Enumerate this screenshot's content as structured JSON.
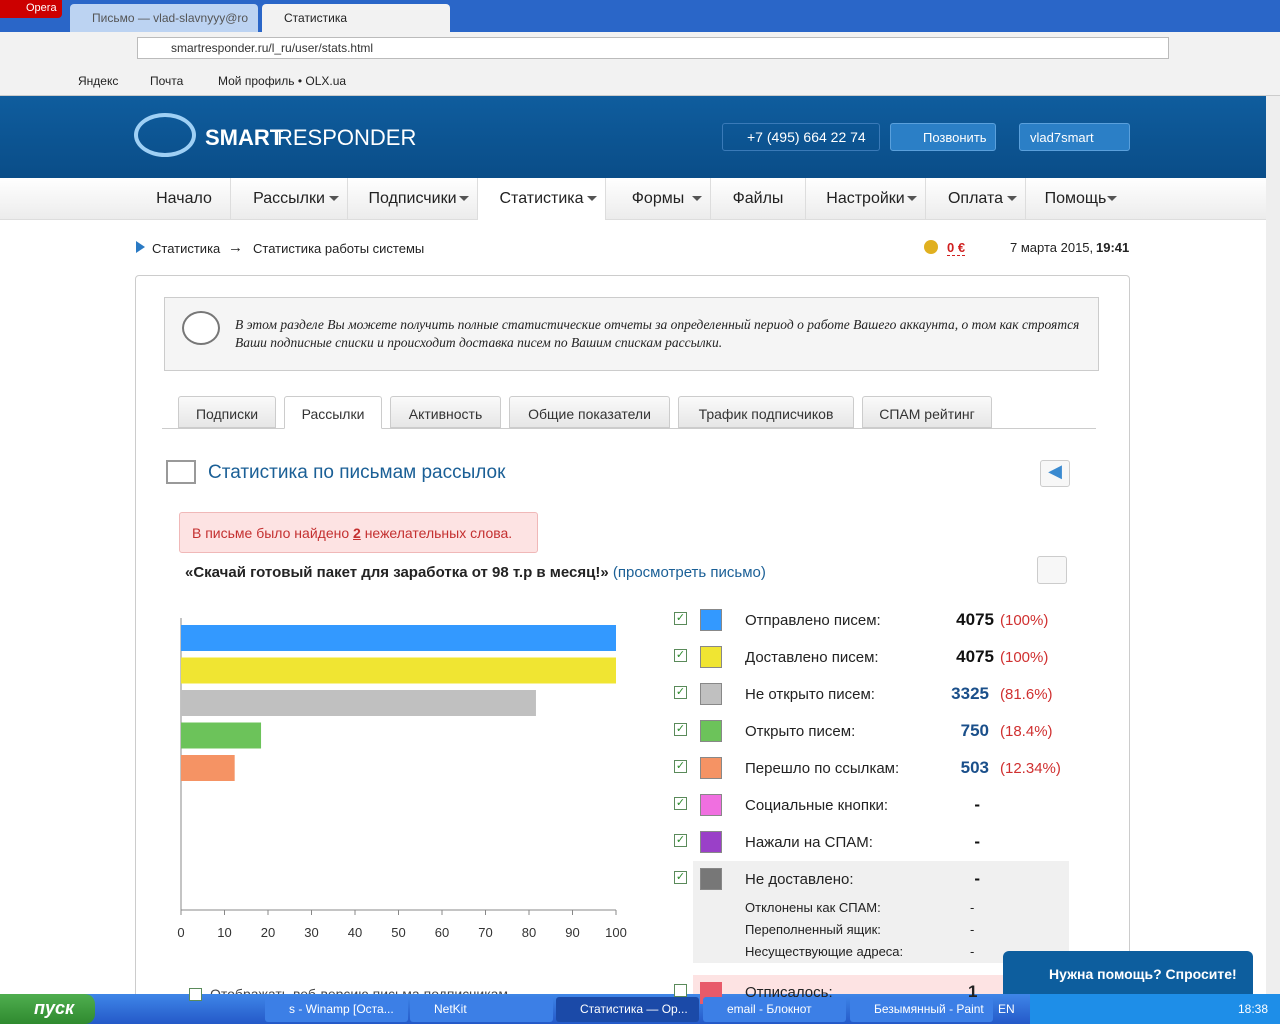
{
  "browser": {
    "app": "Opera",
    "tabs": [
      "Письмо — vlad-slavnyyy@ro",
      "Статистика"
    ],
    "active_tab": 1,
    "url": "smartresponder.ru/l_ru/user/stats.html",
    "bookmarks": [
      "Яндекс",
      "Почта",
      "Мой профиль • OLX.ua"
    ]
  },
  "header": {
    "logo_bold": "SMART",
    "logo_rest": "RESPONDER",
    "phone": "+7 (495) 664 22 74",
    "call": "Позвонить",
    "user": "vlad7smart"
  },
  "nav": [
    {
      "label": "Начало",
      "dropdown": false
    },
    {
      "label": "Рассылки",
      "dropdown": true
    },
    {
      "label": "Подписчики",
      "dropdown": true
    },
    {
      "label": "Статистика",
      "dropdown": true
    },
    {
      "label": "Формы",
      "dropdown": true
    },
    {
      "label": "Файлы",
      "dropdown": false
    },
    {
      "label": "Настройки",
      "dropdown": true
    },
    {
      "label": "Оплата",
      "dropdown": true
    },
    {
      "label": "Помощь",
      "dropdown": true
    }
  ],
  "breadcrumb": {
    "items": [
      "Статистика",
      "Статистика работы системы"
    ],
    "separator": "→"
  },
  "status": {
    "balance": "0 €",
    "date": "7 марта 2015,",
    "time": "19:41"
  },
  "info": "В этом разделе Вы можете получить полные статистические отчеты за определенный период о работе Вашего аккаунта, о том как строятся Ваши подписные списки и происходит доставка писем по Вашим спискам рассылки.",
  "tabs": {
    "items": [
      "Подписки",
      "Рассылки",
      "Активность",
      "Общие показатели",
      "Трафик подписчиков",
      "СПАМ рейтинг"
    ],
    "active": 1
  },
  "section_title": "Статистика по письмам рассылок",
  "alert": {
    "before": "В письме было найдено",
    "count": "2",
    "after": "нежелательных слова."
  },
  "letter": {
    "title": "«Скачай готовый пакет для заработка от 98 т.р в месяц!»",
    "open": "(",
    "link": "просмотреть письмо",
    "close": ")"
  },
  "chart_data": {
    "type": "bar",
    "orientation": "horizontal",
    "values": [
      100,
      100,
      81.6,
      18.4,
      12.34
    ],
    "colors": [
      "#3399ff",
      "#f0e532",
      "#c0c0c0",
      "#6cc35a",
      "#f59364"
    ],
    "xlim": [
      0,
      100
    ],
    "xticks": [
      0,
      10,
      20,
      30,
      40,
      50,
      60,
      70,
      80,
      90,
      100
    ]
  },
  "legend": [
    {
      "label": "Отправлено писем:",
      "count": 4075,
      "percent": "(100%)",
      "color": "#3399ff"
    },
    {
      "label": "Доставлено писем:",
      "count": 4075,
      "percent": "(100%)",
      "color": "#f0e532"
    },
    {
      "label": "Не открыто писем:",
      "count": 3325,
      "percent": "(81.6%)",
      "color": "#c0c0c0"
    },
    {
      "label": "Открыто писем:",
      "count": 750,
      "percent": "(18.4%)",
      "color": "#6cc35a"
    },
    {
      "label": "Перешло по ссылкам:",
      "count": 503,
      "percent": "(12.34%)",
      "color": "#f59364"
    },
    {
      "label": "Социальные кнопки:",
      "count": "-",
      "color": "#f06fe0"
    },
    {
      "label": "Нажали на СПАМ:",
      "count": "-",
      "color": "#9a40c8"
    },
    {
      "label": "Не доставлено:",
      "count": "-",
      "color": "#777777"
    }
  ],
  "undelivered": [
    {
      "label": "Отклонены как СПАМ:",
      "count": "-"
    },
    {
      "label": "Переполненный ящик:",
      "count": "-"
    },
    {
      "label": "Несуществующие адреса:",
      "count": "-"
    }
  ],
  "unsubscribed": {
    "label": "Отписалось:",
    "count": 1,
    "color": "#e85a6a"
  },
  "web_version": "Отображать веб-версию письма подписчикам",
  "help": "Нужна помощь? Спросите!",
  "taskbar": {
    "start": "пуск",
    "items": [
      "s - Winamp [Оста...",
      "NetKit",
      "Статистика — Op...",
      "email - Блокнот",
      "Безымянный - Paint"
    ],
    "active": 2,
    "lang": "EN",
    "clock": "18:38"
  }
}
